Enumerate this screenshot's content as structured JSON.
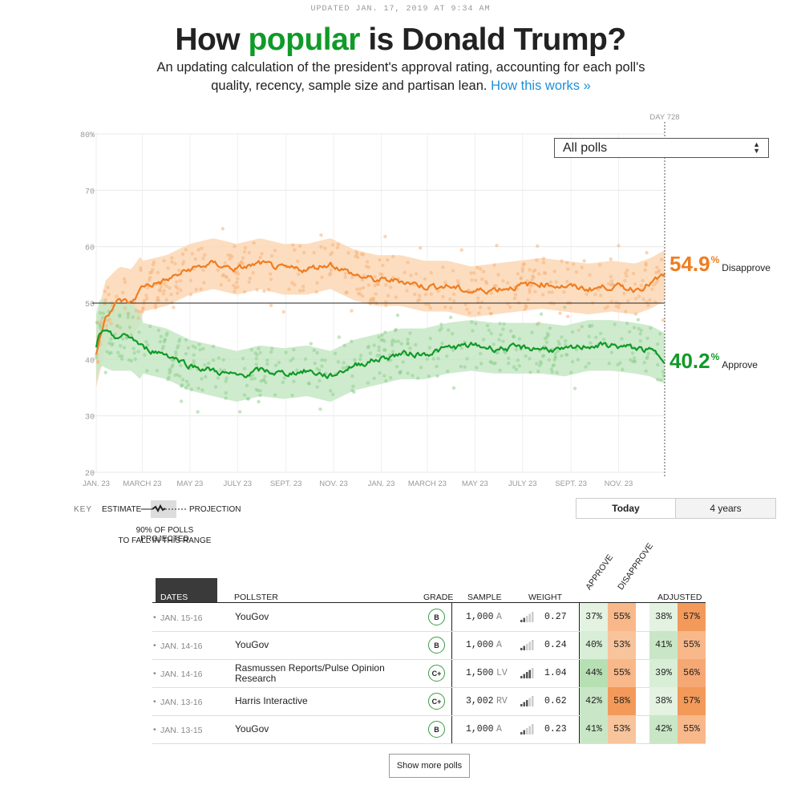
{
  "header": {
    "updated": "UPDATED JAN. 17, 2019 AT 9:34 AM",
    "title_pre": "How ",
    "title_highlight": "popular",
    "title_post": " is Donald Trump?",
    "subtitle": "An updating calculation of the president's approval rating, accounting for each poll's quality, recency, sample size and partisan lean.",
    "how_link": "How this works »"
  },
  "colors": {
    "approve": "#109a28",
    "disapprove": "#ef7d21",
    "approve_light": "#c6e8c4",
    "disapprove_light": "#fbd7b4"
  },
  "dropdown": {
    "value": "All polls"
  },
  "chart_data": {
    "type": "line",
    "title": "",
    "ylim": [
      20,
      80
    ],
    "y_ticks": [
      "80%",
      "70",
      "60",
      "50",
      "40",
      "30",
      "20"
    ],
    "x_ticks": [
      "JAN. 23",
      "MARCH 23",
      "MAY 23",
      "JULY 23",
      "SEPT. 23",
      "NOV. 23",
      "JAN. 23",
      "MARCH 23",
      "MAY 23",
      "JULY 23",
      "SEPT. 23",
      "NOV. 23"
    ],
    "day_label": "DAY 728",
    "x_range_days": [
      0,
      728
    ],
    "series": [
      {
        "name": "Disapprove",
        "points": [
          [
            0,
            41
          ],
          [
            12,
            48
          ],
          [
            30,
            50.5
          ],
          [
            45,
            50
          ],
          [
            60,
            53
          ],
          [
            90,
            54
          ],
          [
            120,
            56
          ],
          [
            150,
            57
          ],
          [
            180,
            56
          ],
          [
            210,
            57
          ],
          [
            240,
            56
          ],
          [
            270,
            56
          ],
          [
            300,
            57
          ],
          [
            330,
            55
          ],
          [
            360,
            54
          ],
          [
            390,
            54
          ],
          [
            420,
            53
          ],
          [
            450,
            53
          ],
          [
            480,
            52
          ],
          [
            510,
            52.5
          ],
          [
            540,
            53
          ],
          [
            570,
            53.5
          ],
          [
            600,
            53
          ],
          [
            630,
            52.5
          ],
          [
            660,
            53
          ],
          [
            690,
            52.5
          ],
          [
            710,
            53.5
          ],
          [
            728,
            54.9
          ]
        ]
      },
      {
        "name": "Approve",
        "points": [
          [
            0,
            42
          ],
          [
            5,
            45
          ],
          [
            20,
            44
          ],
          [
            45,
            44
          ],
          [
            60,
            42
          ],
          [
            90,
            41
          ],
          [
            120,
            39
          ],
          [
            150,
            38
          ],
          [
            180,
            37
          ],
          [
            210,
            38
          ],
          [
            240,
            37.5
          ],
          [
            270,
            38
          ],
          [
            300,
            37
          ],
          [
            330,
            39
          ],
          [
            360,
            40
          ],
          [
            390,
            41
          ],
          [
            420,
            41
          ],
          [
            450,
            42
          ],
          [
            480,
            42.5
          ],
          [
            510,
            42
          ],
          [
            540,
            42
          ],
          [
            570,
            42
          ],
          [
            600,
            41.5
          ],
          [
            630,
            42.5
          ],
          [
            660,
            42.5
          ],
          [
            690,
            42
          ],
          [
            710,
            41.5
          ],
          [
            728,
            40.2
          ]
        ]
      }
    ],
    "final": {
      "disapprove": "54.9",
      "approve": "40.2",
      "disapprove_label": "Disapprove",
      "approve_label": "Approve",
      "pct": "%"
    }
  },
  "key": {
    "label": "KEY",
    "estimate": "ESTIMATE",
    "projection": "PROJECTION",
    "range_note_1": "90% OF POLLS PROJECTED",
    "range_note_2": "TO FALL IN THIS RANGE"
  },
  "toggle": {
    "today": "Today",
    "four_years": "4 years"
  },
  "table": {
    "headers": {
      "dates": "DATES",
      "pollster": "POLLSTER",
      "grade": "GRADE",
      "sample": "SAMPLE",
      "weight": "WEIGHT",
      "approve": "APPROVE",
      "disapprove": "DISAPPROVE",
      "adjusted": "ADJUSTED"
    },
    "rows": [
      {
        "dates": "JAN. 15-16",
        "pollster": "YouGov",
        "grade": "B",
        "sample": "1,000",
        "pop": "A",
        "weight": "0.27",
        "approve": "37%",
        "disapprove": "55%",
        "adj_approve": "38%",
        "adj_disapprove": "57%"
      },
      {
        "dates": "JAN. 14-16",
        "pollster": "YouGov",
        "grade": "B",
        "sample": "1,000",
        "pop": "A",
        "weight": "0.24",
        "approve": "40%",
        "disapprove": "53%",
        "adj_approve": "41%",
        "adj_disapprove": "55%"
      },
      {
        "dates": "JAN. 14-16",
        "pollster": "Rasmussen Reports/Pulse Opinion Research",
        "grade": "C+",
        "sample": "1,500",
        "pop": "LV",
        "weight": "1.04",
        "approve": "44%",
        "disapprove": "55%",
        "adj_approve": "39%",
        "adj_disapprove": "56%"
      },
      {
        "dates": "JAN. 13-16",
        "pollster": "Harris Interactive",
        "grade": "C+",
        "sample": "3,002",
        "pop": "RV",
        "weight": "0.62",
        "approve": "42%",
        "disapprove": "58%",
        "adj_approve": "38%",
        "adj_disapprove": "57%"
      },
      {
        "dates": "JAN. 13-15",
        "pollster": "YouGov",
        "grade": "B",
        "sample": "1,000",
        "pop": "A",
        "weight": "0.23",
        "approve": "41%",
        "disapprove": "53%",
        "adj_approve": "42%",
        "adj_disapprove": "55%"
      }
    ],
    "show_more": "Show more polls"
  }
}
